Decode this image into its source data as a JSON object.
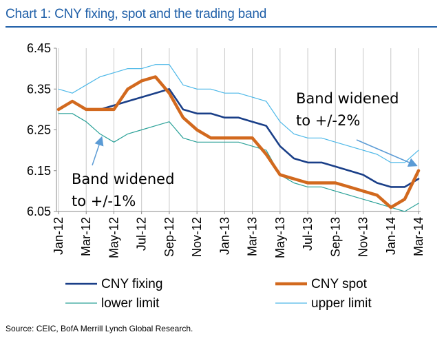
{
  "title": "Chart 1: CNY fixing, spot and the trading band",
  "source": "Source: CEIC, BofA Merrill Lynch Global Research.",
  "colors": {
    "title": "#1f5fa8",
    "fixing": "#1a3f88",
    "spot": "#d2691e",
    "lower": "#2aa198",
    "upper": "#4db8e8",
    "annotation_arrow": "#5b9bd5"
  },
  "chart_data": {
    "type": "line",
    "title": "Chart 1: CNY fixing, spot and the trading band",
    "xlabel": "",
    "ylabel": "",
    "ylim": [
      6.05,
      6.45
    ],
    "yticks": [
      "6.45",
      "6.35",
      "6.25",
      "6.15",
      "6.05"
    ],
    "xticks": [
      "Jan-12",
      "Mar-12",
      "May-12",
      "Jul-12",
      "Sep-12",
      "Nov-12",
      "Jan-13",
      "Mar-13",
      "May-13",
      "Jul-13",
      "Sep-13",
      "Nov-13",
      "Jan-14",
      "Mar-14"
    ],
    "xlim": [
      "2012-01",
      "2014-03"
    ],
    "grid": "vertical only",
    "legend": "bottom",
    "x": [
      "2012-01",
      "2012-02",
      "2012-03",
      "2012-04",
      "2012-05",
      "2012-06",
      "2012-07",
      "2012-08",
      "2012-09",
      "2012-10",
      "2012-11",
      "2012-12",
      "2013-01",
      "2013-02",
      "2013-03",
      "2013-04",
      "2013-05",
      "2013-06",
      "2013-07",
      "2013-08",
      "2013-09",
      "2013-10",
      "2013-11",
      "2013-12",
      "2014-01",
      "2014-02",
      "2014-03"
    ],
    "series": [
      {
        "name": "CNY fixing",
        "values": [
          6.3,
          6.32,
          6.3,
          6.3,
          6.31,
          6.32,
          6.33,
          6.34,
          6.35,
          6.3,
          6.29,
          6.29,
          6.28,
          6.28,
          6.27,
          6.26,
          6.21,
          6.18,
          6.17,
          6.17,
          6.16,
          6.15,
          6.14,
          6.12,
          6.11,
          6.11,
          6.13
        ]
      },
      {
        "name": "CNY spot",
        "values": [
          6.3,
          6.32,
          6.3,
          6.3,
          6.3,
          6.35,
          6.37,
          6.38,
          6.34,
          6.28,
          6.25,
          6.23,
          6.23,
          6.23,
          6.23,
          6.19,
          6.14,
          6.13,
          6.12,
          6.12,
          6.12,
          6.11,
          6.1,
          6.09,
          6.06,
          6.08,
          6.15
        ]
      },
      {
        "name": "lower limit",
        "values": [
          6.29,
          6.29,
          6.27,
          6.24,
          6.22,
          6.24,
          6.25,
          6.26,
          6.27,
          6.23,
          6.22,
          6.22,
          6.22,
          6.22,
          6.21,
          6.2,
          6.14,
          6.12,
          6.11,
          6.11,
          6.1,
          6.09,
          6.08,
          6.07,
          6.06,
          6.05,
          6.07
        ]
      },
      {
        "name": "upper limit",
        "values": [
          6.35,
          6.34,
          6.36,
          6.38,
          6.39,
          6.4,
          6.4,
          6.41,
          6.41,
          6.36,
          6.35,
          6.35,
          6.34,
          6.34,
          6.33,
          6.32,
          6.27,
          6.24,
          6.23,
          6.23,
          6.22,
          6.21,
          6.2,
          6.19,
          6.17,
          6.17,
          6.2
        ]
      }
    ],
    "annotations": [
      {
        "text_lines": [
          "Band widened",
          "to +/-1%"
        ],
        "points_to": "2012-04"
      },
      {
        "text_lines": [
          "Band widened",
          "to +/-2%"
        ],
        "points_to": "2014-03"
      }
    ]
  }
}
